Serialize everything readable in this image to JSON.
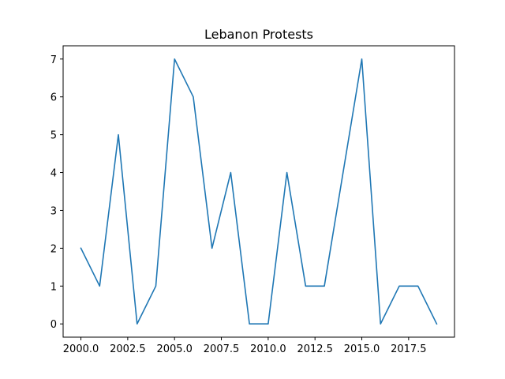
{
  "chart_data": {
    "type": "line",
    "title": "Lebanon Protests",
    "xlabel": "",
    "ylabel": "",
    "xlim": [
      1999.05,
      2019.95
    ],
    "ylim": [
      -0.35,
      7.35
    ],
    "xticks": [
      2000.0,
      2002.5,
      2005.0,
      2007.5,
      2010.0,
      2012.5,
      2015.0,
      2017.5
    ],
    "xtick_labels": [
      "2000.0",
      "2002.5",
      "2005.0",
      "2007.5",
      "2010.0",
      "2012.5",
      "2015.0",
      "2017.5"
    ],
    "yticks": [
      0,
      1,
      2,
      3,
      4,
      5,
      6,
      7
    ],
    "ytick_labels": [
      "0",
      "1",
      "2",
      "3",
      "4",
      "5",
      "6",
      "7"
    ],
    "grid": false,
    "series": [
      {
        "color": "#1f77b4",
        "x": [
          2000,
          2001,
          2002,
          2003,
          2004,
          2005,
          2006,
          2007,
          2008,
          2009,
          2010,
          2011,
          2012,
          2013,
          2014,
          2015,
          2016,
          2017,
          2018,
          2019
        ],
        "y": [
          2,
          1,
          5,
          0,
          1,
          7,
          6,
          2,
          4,
          0,
          0,
          4,
          1,
          1,
          4,
          7,
          0,
          1,
          1,
          0
        ]
      }
    ]
  }
}
